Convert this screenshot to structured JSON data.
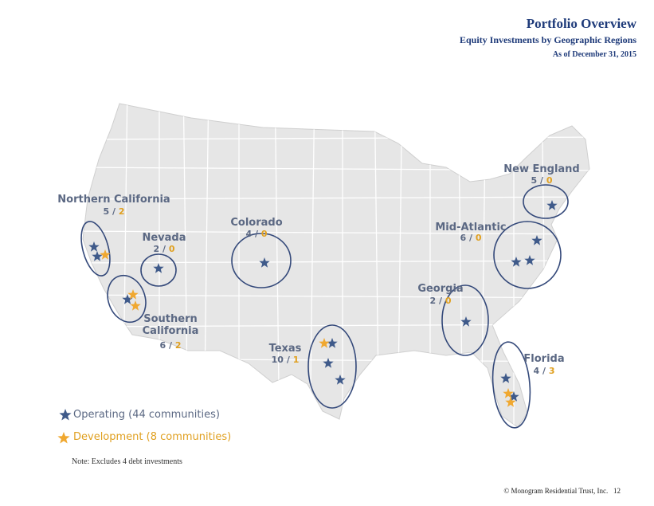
{
  "header": {
    "title": "Portfolio Overview",
    "subtitle": "Equity Investments by Geographic Regions",
    "date": "As of December 31, 2015"
  },
  "count_separator": "/",
  "regions": [
    {
      "name": "Northern California",
      "operating": 5,
      "development": 2
    },
    {
      "name": "Nevada",
      "operating": 2,
      "development": 0
    },
    {
      "name": "Colorado",
      "operating": 4,
      "development": 0
    },
    {
      "name": "Southern California",
      "operating": 6,
      "development": 2
    },
    {
      "name": "Texas",
      "operating": 10,
      "development": 1
    },
    {
      "name": "Georgia",
      "operating": 2,
      "development": 0
    },
    {
      "name": "Florida",
      "operating": 4,
      "development": 3
    },
    {
      "name": "Mid-Atlantic",
      "operating": 6,
      "development": 0
    },
    {
      "name": "New England",
      "operating": 5,
      "development": 0
    }
  ],
  "legend": {
    "operating": "Operating (44 communities)",
    "development": "Development (8 communities)"
  },
  "note": "Note:  Excludes 4 debt investments",
  "footer": {
    "copyright": "© Monogram Residential Trust, Inc.",
    "page": "12"
  }
}
